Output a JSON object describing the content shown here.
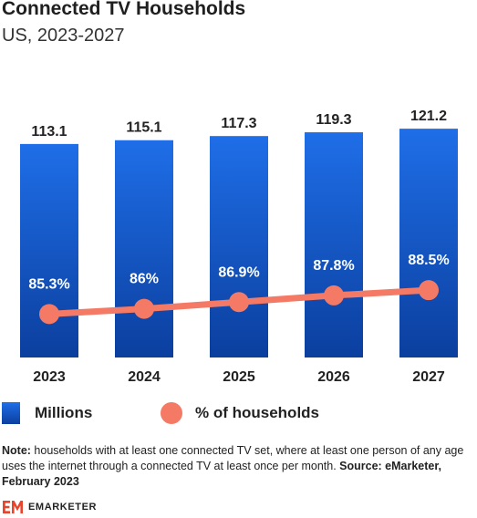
{
  "chart_data": {
    "type": "bar",
    "title": "Connected TV Households",
    "subtitle": "US, 2023-2027",
    "categories": [
      "2023",
      "2024",
      "2025",
      "2026",
      "2027"
    ],
    "series": [
      {
        "name": "Millions",
        "type": "bar",
        "values": [
          113.1,
          115.1,
          117.3,
          119.3,
          121.2
        ],
        "labels": [
          "113.1",
          "115.1",
          "117.3",
          "119.3",
          "121.2"
        ],
        "color": "#1a5fd6"
      },
      {
        "name": "% of households",
        "type": "line",
        "values": [
          85.3,
          86,
          86.9,
          87.8,
          88.5
        ],
        "labels": [
          "85.3%",
          "86%",
          "86.9%",
          "87.8%",
          "88.5%"
        ],
        "color": "#f47a65"
      }
    ],
    "grid": false,
    "legend_position": "bottom"
  },
  "note": {
    "prefix": "Note:",
    "text": " households with at least one connected TV set, where at least one person of any age uses the internet through a connected TV at least once per month. ",
    "source": "Source: eMarketer, February 2023"
  },
  "brand": {
    "name": "EMARKETER",
    "icon": "em-logo-icon",
    "color": "#e8452c"
  }
}
